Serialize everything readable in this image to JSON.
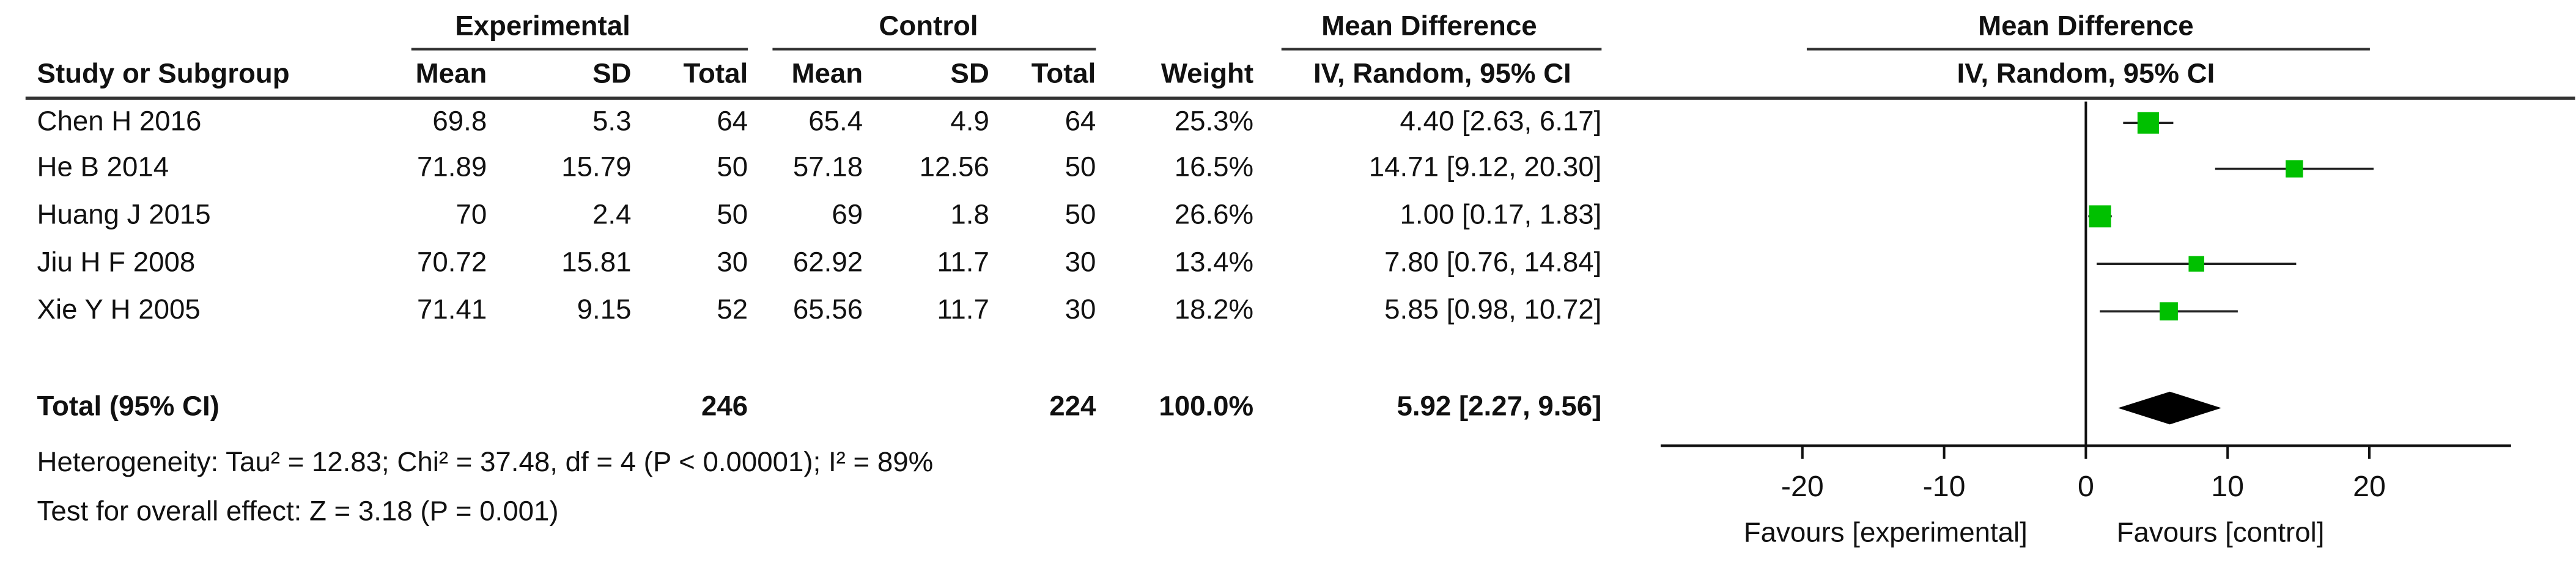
{
  "table": {
    "group_headers": [
      "Experimental",
      "Control",
      "Mean Difference"
    ],
    "columns": [
      "Study or Subgroup",
      "Mean",
      "SD",
      "Total",
      "Mean",
      "SD",
      "Total",
      "Weight",
      "IV, Random, 95% CI"
    ],
    "rows": [
      [
        "Chen H  2016",
        "69.8",
        "5.3",
        "64",
        "65.4",
        "4.9",
        "64",
        "25.3%",
        "4.40 [2.63, 6.17]"
      ],
      [
        "He B  2014",
        "71.89",
        "15.79",
        "50",
        "57.18",
        "12.56",
        "50",
        "16.5%",
        "14.71 [9.12, 20.30]"
      ],
      [
        "Huang J 2015",
        "70",
        "2.4",
        "50",
        "69",
        "1.8",
        "50",
        "26.6%",
        "1.00 [0.17, 1.83]"
      ],
      [
        "Jiu H F 2008",
        "70.72",
        "15.81",
        "30",
        "62.92",
        "11.7",
        "30",
        "13.4%",
        "7.80 [0.76, 14.84]"
      ],
      [
        "Xie Y H  2005",
        "71.41",
        "9.15",
        "52",
        "65.56",
        "11.7",
        "30",
        "18.2%",
        "5.85 [0.98, 10.72]"
      ]
    ],
    "total_row": {
      "label": "Total (95% CI)",
      "experimental_total": "246",
      "control_total": "224",
      "weight": "100.0%",
      "ci": "5.92 [2.27, 9.56]"
    },
    "heterogeneity": "Heterogeneity: Tau² = 12.83; Chi² = 37.48, df = 4 (P < 0.00001); I² = 89%",
    "overall_effect": "Test for overall effect: Z = 3.18 (P = 0.001)"
  },
  "chart_data": {
    "type": "forest",
    "title": "Mean Difference",
    "subtitle": "IV, Random, 95% CI",
    "xlim": [
      -30,
      30
    ],
    "xticks": [
      -20,
      -10,
      0,
      10,
      20
    ],
    "x_labels": [
      "Favours [experimental]",
      "Favours [control]"
    ],
    "color": "#00c000",
    "studies": {
      "values": [
        4.4,
        14.71,
        1.0,
        7.8,
        5.85
      ],
      "lower": [
        2.63,
        9.12,
        0.17,
        0.76,
        0.98
      ],
      "upper": [
        6.17,
        20.3,
        1.83,
        14.84,
        10.72
      ],
      "weights": [
        25.3,
        16.5,
        26.6,
        13.4,
        18.2
      ]
    },
    "total": {
      "value": 5.92,
      "lower": 2.27,
      "upper": 9.56
    }
  }
}
